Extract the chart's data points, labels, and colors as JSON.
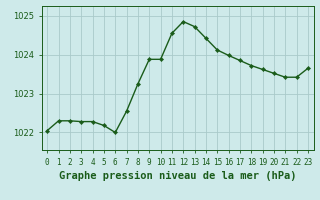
{
  "x": [
    0,
    1,
    2,
    3,
    4,
    5,
    6,
    7,
    8,
    9,
    10,
    11,
    12,
    13,
    14,
    15,
    16,
    17,
    18,
    19,
    20,
    21,
    22,
    23
  ],
  "y": [
    1022.05,
    1022.3,
    1022.3,
    1022.28,
    1022.28,
    1022.18,
    1022.0,
    1022.55,
    1023.25,
    1023.88,
    1023.88,
    1024.55,
    1024.85,
    1024.72,
    1024.42,
    1024.12,
    1023.98,
    1023.85,
    1023.72,
    1023.62,
    1023.52,
    1023.42,
    1023.42,
    1023.65
  ],
  "line_color": "#1a5c1a",
  "marker": "D",
  "marker_size": 2.2,
  "bg_color": "#ceeaea",
  "grid_color": "#aacaca",
  "xlabel": "Graphe pression niveau de la mer (hPa)",
  "xlabel_fontsize": 7.5,
  "xlabel_color": "#1a5c1a",
  "yticks": [
    1022,
    1023,
    1024,
    1025
  ],
  "ylim": [
    1021.55,
    1025.25
  ],
  "xlim": [
    -0.5,
    23.5
  ],
  "xtick_labels": [
    "0",
    "1",
    "2",
    "3",
    "4",
    "5",
    "6",
    "7",
    "8",
    "9",
    "10",
    "11",
    "12",
    "13",
    "14",
    "15",
    "16",
    "17",
    "18",
    "19",
    "20",
    "21",
    "22",
    "23"
  ],
  "tick_color": "#1a5c1a",
  "ytick_fontsize": 6.0,
  "xtick_fontsize": 5.5,
  "line_width": 1.0
}
